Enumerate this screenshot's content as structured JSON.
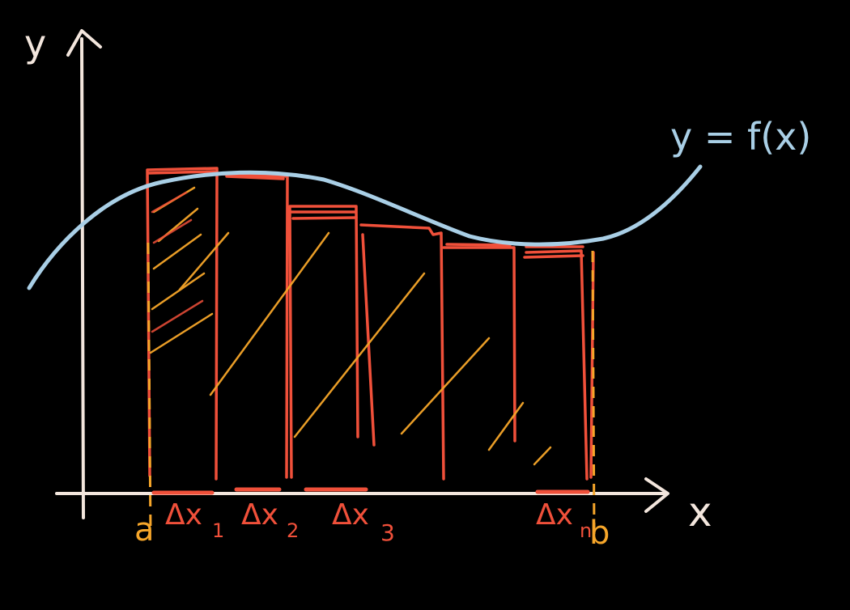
{
  "labels": {
    "y_axis": "y",
    "x_axis": "x",
    "curve": "y = f(x)",
    "a": "a",
    "b": "b",
    "dx": [
      "Δx",
      "Δx",
      "Δx",
      "Δx"
    ],
    "dx_sub": [
      "1",
      "2",
      "3",
      "n"
    ]
  },
  "colors": {
    "background": "#000000",
    "axes": "#f3e6dd",
    "curve": "#a9cfe6",
    "rectangles": "#f0503a",
    "hatch": "#f6a62a",
    "endpoint_labels": "#f6a62a",
    "delta_labels": "#f0503a"
  }
}
